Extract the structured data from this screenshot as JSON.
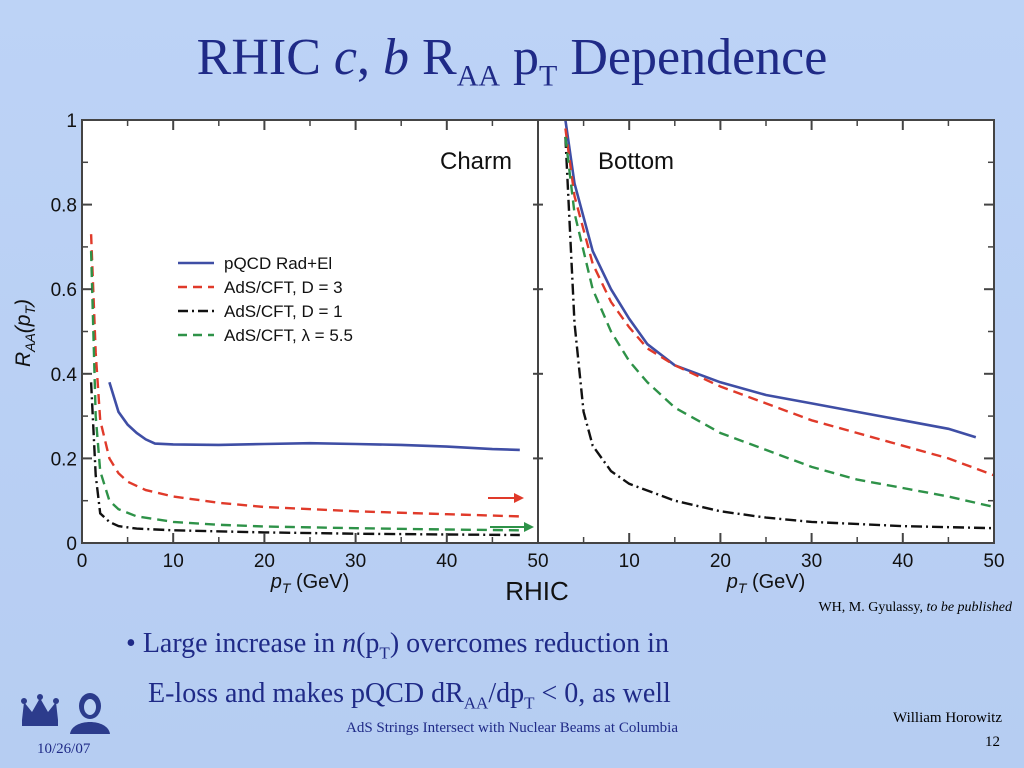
{
  "slide": {
    "title_prefix": "RHIC ",
    "title_c": "c",
    "title_comma": ",",
    "title_b": "b",
    "title_R": "R",
    "title_R_sub": "AA",
    "title_p": "p",
    "title_p_sub": "T",
    "title_suffix": "Dependence",
    "credit_authors": "WH, M. Gyulassy,",
    "credit_status": "to be published",
    "bullet_symbol": "•",
    "bullet_line1_a": "Large increase in ",
    "bullet_line1_n": "n",
    "bullet_line1_b": "(p",
    "bullet_line1_sub": "T",
    "bullet_line1_c": ") overcomes reduction in",
    "bullet_line2_a": "E-loss and makes pQCD dR",
    "bullet_line2_sub1": "AA",
    "bullet_line2_b": "/dp",
    "bullet_line2_sub2": "T",
    "bullet_line2_c": " < 0, as well",
    "footer_date": "10/26/07",
    "footer_center": "AdS Strings Intersect with Nuclear Beams at Columbia",
    "footer_author": "William Horowitz",
    "footer_page": "12"
  },
  "chart_data": {
    "type": "line",
    "panel_labels": [
      "Charm",
      "Bottom"
    ],
    "bottom_label": "RHIC",
    "xlabel": "p_T (GeV)",
    "ylabel": "R_AA(p_T)",
    "xlim": [
      0,
      50
    ],
    "ylim": [
      0,
      1
    ],
    "x_ticks": [
      "0",
      "10",
      "20",
      "30",
      "40",
      "50"
    ],
    "bottom_x_ticks": [
      "10",
      "20",
      "30",
      "40",
      "50"
    ],
    "y_ticks": [
      "0",
      "0.2",
      "0.4",
      "0.6",
      "0.8",
      "1"
    ],
    "legend_position": "middle-left of Charm panel",
    "colors": {
      "pqcd": "#3f4ea5",
      "ads_d3": "#e03a2a",
      "ads_d1": "#111111",
      "ads_lambda": "#2e9248",
      "marker": "#e03a2a"
    },
    "panels": [
      {
        "name": "Charm",
        "series": [
          {
            "name": "pQCD Rad+El",
            "style": "solid",
            "color": "#3f4ea5",
            "x": [
              3,
              4,
              5,
              6,
              7,
              8,
              10,
              15,
              20,
              25,
              30,
              35,
              40,
              45,
              48
            ],
            "y": [
              0.38,
              0.31,
              0.28,
              0.26,
              0.245,
              0.235,
              0.233,
              0.232,
              0.234,
              0.236,
              0.234,
              0.232,
              0.228,
              0.222,
              0.22
            ]
          },
          {
            "name": "AdS/CFT, D = 3",
            "style": "dashed",
            "color": "#e03a2a",
            "x": [
              1,
              1.5,
              2,
              3,
              4,
              5,
              7,
              10,
              15,
              20,
              30,
              40,
              48
            ],
            "y": [
              0.73,
              0.45,
              0.29,
              0.2,
              0.165,
              0.145,
              0.125,
              0.11,
              0.095,
              0.085,
              0.075,
              0.068,
              0.063
            ]
          },
          {
            "name": "AdS/CFT, D = 1",
            "style": "dashdot",
            "color": "#111111",
            "x": [
              1,
              1.5,
              2,
              3,
              4,
              6,
              10,
              20,
              30,
              40,
              48
            ],
            "y": [
              0.38,
              0.16,
              0.07,
              0.05,
              0.04,
              0.034,
              0.03,
              0.025,
              0.022,
              0.02,
              0.019
            ]
          },
          {
            "name": "AdS/CFT, λ = 5.5",
            "style": "dashed",
            "color": "#2e9248",
            "x": [
              1,
              1.5,
              2,
              3,
              4,
              6,
              10,
              15,
              20,
              30,
              40,
              48
            ],
            "y": [
              0.69,
              0.3,
              0.17,
              0.1,
              0.08,
              0.063,
              0.05,
              0.043,
              0.039,
              0.035,
              0.032,
              0.03
            ]
          }
        ]
      },
      {
        "name": "Bottom",
        "series": [
          {
            "name": "pQCD Rad+El",
            "style": "solid",
            "color": "#3f4ea5",
            "x": [
              3,
              4,
              6,
              8,
              10,
              12,
              15,
              20,
              25,
              30,
              35,
              40,
              45,
              48
            ],
            "y": [
              1.0,
              0.85,
              0.69,
              0.6,
              0.53,
              0.47,
              0.42,
              0.38,
              0.35,
              0.33,
              0.31,
              0.29,
              0.27,
              0.25
            ]
          },
          {
            "name": "AdS/CFT, D = 3",
            "style": "dashed",
            "color": "#e03a2a",
            "x": [
              3,
              4,
              6,
              8,
              10,
              12,
              15,
              20,
              25,
              30,
              35,
              40,
              45,
              50
            ],
            "y": [
              0.98,
              0.82,
              0.66,
              0.57,
              0.51,
              0.46,
              0.42,
              0.37,
              0.33,
              0.29,
              0.26,
              0.23,
              0.2,
              0.16
            ]
          },
          {
            "name": "AdS/CFT, D = 1",
            "style": "dashdot",
            "color": "#111111",
            "x": [
              3,
              4,
              5,
              6,
              8,
              10,
              15,
              20,
              25,
              30,
              40,
              50
            ],
            "y": [
              0.96,
              0.52,
              0.31,
              0.23,
              0.17,
              0.14,
              0.1,
              0.075,
              0.06,
              0.05,
              0.04,
              0.035
            ]
          },
          {
            "name": "AdS/CFT, λ = 5.5",
            "style": "dashed",
            "color": "#2e9248",
            "x": [
              3,
              4,
              6,
              8,
              10,
              12,
              15,
              20,
              25,
              30,
              35,
              40,
              45,
              50
            ],
            "y": [
              0.96,
              0.78,
              0.6,
              0.5,
              0.43,
              0.38,
              0.32,
              0.26,
              0.22,
              0.18,
              0.15,
              0.13,
              0.11,
              0.085
            ]
          }
        ]
      }
    ]
  }
}
